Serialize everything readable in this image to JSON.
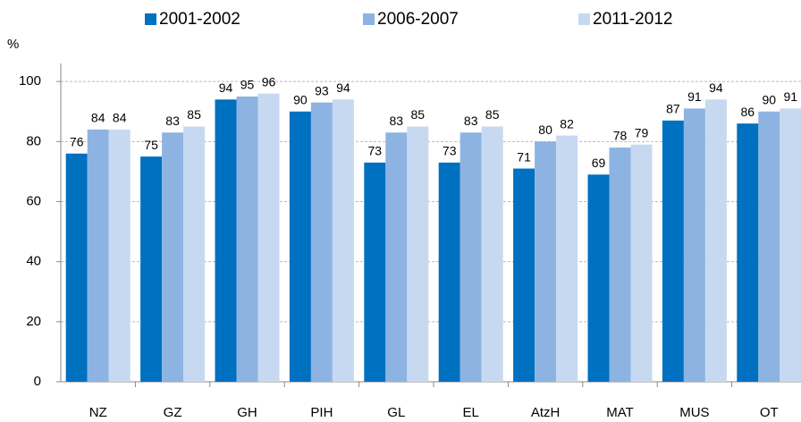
{
  "chart_data": {
    "type": "bar",
    "y_label": "%",
    "categories": [
      "NZ",
      "GZ",
      "GH",
      "PIH",
      "GL",
      "EL",
      "AtzH",
      "MAT",
      "MUS",
      "OT"
    ],
    "series": [
      {
        "name": "2001-2002",
        "color": "#0070c0",
        "values": [
          76,
          75,
          94,
          90,
          73,
          73,
          71,
          69,
          87,
          86
        ]
      },
      {
        "name": "2006-2007",
        "color": "#8db3e2",
        "values": [
          84,
          83,
          95,
          93,
          83,
          83,
          80,
          78,
          91,
          90
        ]
      },
      {
        "name": "2011-2012",
        "color": "#c6d9f1",
        "values": [
          84,
          85,
          96,
          94,
          85,
          85,
          82,
          79,
          94,
          91
        ]
      }
    ],
    "ylim": [
      0,
      106
    ],
    "yticks": [
      0,
      20,
      40,
      60,
      80,
      100
    ],
    "grid": true,
    "legend": "top"
  }
}
